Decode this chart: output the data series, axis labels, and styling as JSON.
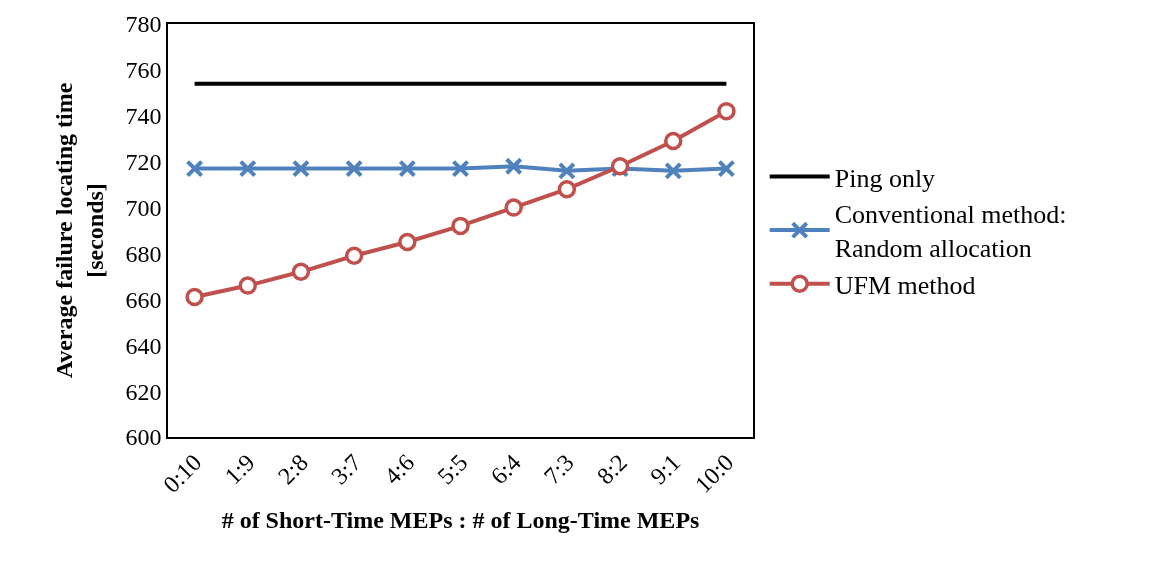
{
  "chart_data": {
    "type": "line",
    "ylabel": "Average failure locating time\n[seconds]",
    "xlabel": "# of Short-Time MEPs : # of Long-Time MEPs",
    "categories": [
      "0:10",
      "1:9",
      "2:8",
      "3:7",
      "4:6",
      "5:5",
      "6:4",
      "7:3",
      "8:2",
      "9:1",
      "10:0"
    ],
    "series": [
      {
        "name": "Ping only",
        "color": "#000000",
        "marker": "none",
        "values": [
          754,
          754,
          754,
          754,
          754,
          754,
          754,
          754,
          754,
          754,
          754
        ]
      },
      {
        "name": "Conventional method:\nRandom allocation",
        "color": "#4f81bd",
        "marker": "cross",
        "values": [
          717,
          717,
          717,
          717,
          717,
          717,
          718,
          716,
          717,
          716,
          717
        ]
      },
      {
        "name": "UFM method",
        "color": "#c0504d",
        "marker": "circle",
        "values": [
          661,
          666,
          672,
          679,
          685,
          692,
          700,
          708,
          718,
          729,
          742
        ]
      }
    ],
    "ylim": [
      600,
      780
    ],
    "yticks": [
      600,
      620,
      640,
      660,
      680,
      700,
      720,
      740,
      760,
      780
    ],
    "legend": "right"
  }
}
